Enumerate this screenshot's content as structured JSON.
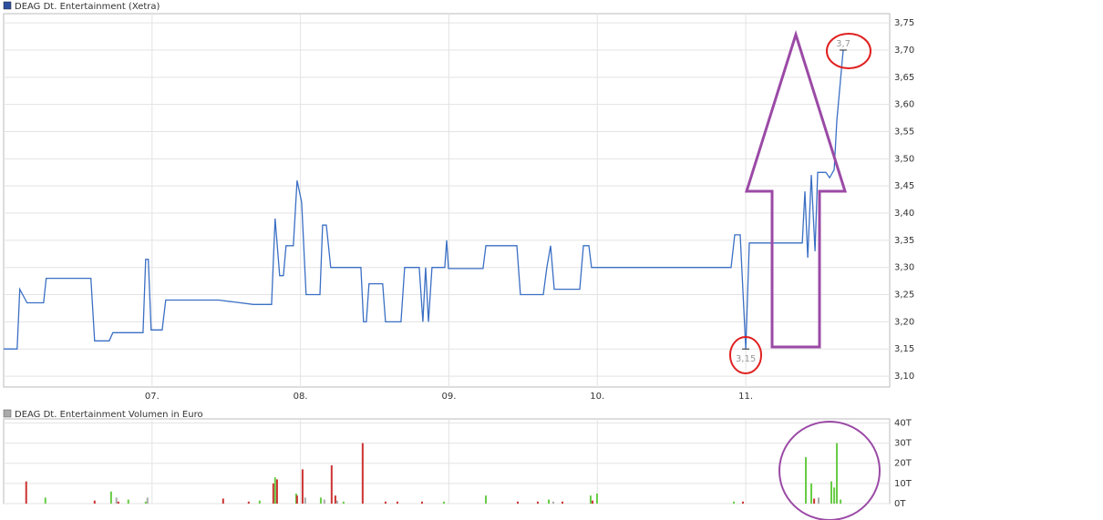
{
  "chart_data": [
    {
      "type": "line",
      "title": "DEAG Dt. Entertainment (Xetra)",
      "color": "#3a6fc4",
      "grid": true,
      "x": [
        6.0,
        6.091,
        6.109,
        6.158,
        6.269,
        6.287,
        6.588,
        6.613,
        6.711,
        6.736,
        6.939,
        6.957,
        6.975,
        6.994,
        7.068,
        7.092,
        7.449,
        7.682,
        7.805,
        7.829,
        7.86,
        7.885,
        7.903,
        7.952,
        7.977,
        8.008,
        8.038,
        8.131,
        8.149,
        8.174,
        8.204,
        8.407,
        8.425,
        8.444,
        8.462,
        8.554,
        8.573,
        8.677,
        8.702,
        8.8,
        8.825,
        8.843,
        8.862,
        8.886,
        8.972,
        8.985,
        8.997,
        9.23,
        9.249,
        9.458,
        9.482,
        9.636,
        9.66,
        9.685,
        9.71,
        9.882,
        9.906,
        9.943,
        9.961,
        10.901,
        10.926,
        10.963,
        11.0,
        11.024,
        11.381,
        11.399,
        11.418,
        11.442,
        11.467,
        11.485,
        11.54,
        11.565,
        11.596,
        11.614,
        11.657
      ],
      "values": [
        3.15,
        3.15,
        3.26,
        3.235,
        3.235,
        3.28,
        3.28,
        3.165,
        3.165,
        3.18,
        3.18,
        3.315,
        3.315,
        3.185,
        3.185,
        3.24,
        3.24,
        3.232,
        3.232,
        3.39,
        3.285,
        3.285,
        3.34,
        3.34,
        3.46,
        3.42,
        3.25,
        3.25,
        3.378,
        3.378,
        3.3,
        3.3,
        3.2,
        3.2,
        3.27,
        3.27,
        3.2,
        3.2,
        3.3,
        3.3,
        3.2,
        3.3,
        3.2,
        3.3,
        3.3,
        3.35,
        3.298,
        3.298,
        3.34,
        3.34,
        3.25,
        3.25,
        3.3,
        3.34,
        3.26,
        3.26,
        3.34,
        3.34,
        3.3,
        3.3,
        3.36,
        3.36,
        3.15,
        3.345,
        3.345,
        3.44,
        3.318,
        3.47,
        3.33,
        3.475,
        3.475,
        3.465,
        3.48,
        3.57,
        3.7
      ],
      "xlim": [
        6.0,
        11.97
      ],
      "xticks": [
        {
          "value": 7,
          "label": "07."
        },
        {
          "value": 8,
          "label": "08."
        },
        {
          "value": 9,
          "label": "09."
        },
        {
          "value": 10,
          "label": "10."
        },
        {
          "value": 11,
          "label": "11."
        }
      ],
      "ylim": [
        3.08,
        3.767
      ],
      "yticks": [
        {
          "value": 3.1,
          "label": "3,10"
        },
        {
          "value": 3.15,
          "label": "3,15"
        },
        {
          "value": 3.2,
          "label": "3,20"
        },
        {
          "value": 3.25,
          "label": "3,25"
        },
        {
          "value": 3.3,
          "label": "3,30"
        },
        {
          "value": 3.35,
          "label": "3,35"
        },
        {
          "value": 3.4,
          "label": "3,40"
        },
        {
          "value": 3.45,
          "label": "3,45"
        },
        {
          "value": 3.5,
          "label": "3,50"
        },
        {
          "value": 3.55,
          "label": "3,55"
        },
        {
          "value": 3.6,
          "label": "3,60"
        },
        {
          "value": 3.65,
          "label": "3,65"
        },
        {
          "value": 3.7,
          "label": "3,70"
        },
        {
          "value": 3.75,
          "label": "3,75"
        }
      ],
      "annotations": [
        {
          "text": "3,15",
          "x": 11.0,
          "y": 3.15
        },
        {
          "text": "3,7",
          "x": 11.657,
          "y": 3.7
        }
      ]
    },
    {
      "type": "bar",
      "title": "DEAG Dt. Entertainment Volumen in Euro",
      "grid": true,
      "x": [
        6.152,
        6.281,
        6.613,
        6.724,
        6.76,
        6.773,
        6.84,
        6.957,
        6.969,
        7.479,
        7.651,
        7.725,
        7.817,
        7.829,
        7.842,
        7.971,
        7.977,
        8.014,
        8.032,
        8.137,
        8.161,
        8.21,
        8.235,
        8.247,
        8.29,
        8.419,
        8.573,
        8.653,
        8.819,
        8.966,
        9.249,
        9.464,
        9.599,
        9.673,
        9.703,
        9.765,
        9.955,
        9.968,
        9.998,
        10.92,
        10.981,
        11.405,
        11.442,
        11.461,
        11.491,
        11.577,
        11.596,
        11.614,
        11.639
      ],
      "values": [
        11000,
        3000,
        1500,
        6000,
        3000,
        1000,
        2000,
        1000,
        3000,
        2500,
        1000,
        1500,
        10000,
        13000,
        12000,
        5000,
        4000,
        17000,
        3000,
        3000,
        2000,
        19000,
        4000,
        1500,
        1000,
        30000,
        1000,
        1000,
        1000,
        1000,
        4000,
        1000,
        1000,
        2000,
        1000,
        1000,
        4000,
        1500,
        5000,
        1000,
        1000,
        23000,
        10000,
        2500,
        3000,
        11000,
        8000,
        30000,
        2000
      ],
      "colors": [
        "#cc3333",
        "#66cc44",
        "#cc3333",
        "#66cc44",
        "#aaaaaa",
        "#cc3333",
        "#66cc44",
        "#66cc44",
        "#aaaaaa",
        "#cc3333",
        "#cc3333",
        "#66cc44",
        "#cc3333",
        "#66cc44",
        "#cc3333",
        "#66cc44",
        "#cc3333",
        "#cc3333",
        "#aaaaaa",
        "#66cc44",
        "#aaaaaa",
        "#cc3333",
        "#cc3333",
        "#aaaaaa",
        "#66cc44",
        "#cc3333",
        "#cc3333",
        "#cc3333",
        "#cc3333",
        "#66cc44",
        "#66cc44",
        "#cc3333",
        "#cc3333",
        "#66cc44",
        "#aaaaaa",
        "#cc3333",
        "#66cc44",
        "#cc3333",
        "#66cc44",
        "#66cc44",
        "#cc3333",
        "#66cc44",
        "#66cc44",
        "#cc3333",
        "#aaaaaa",
        "#66cc44",
        "#66cc44",
        "#66cc44",
        "#66cc44"
      ],
      "xlim": [
        6.0,
        11.97
      ],
      "xticks": [
        7,
        8,
        9,
        10,
        11
      ],
      "ylim": [
        0,
        42000
      ],
      "yticks": [
        {
          "value": 0,
          "label": "0T"
        },
        {
          "value": 10000,
          "label": "10T"
        },
        {
          "value": 20000,
          "label": "20T"
        },
        {
          "value": 30000,
          "label": "30T"
        },
        {
          "value": 40000,
          "label": "40T"
        }
      ]
    }
  ]
}
